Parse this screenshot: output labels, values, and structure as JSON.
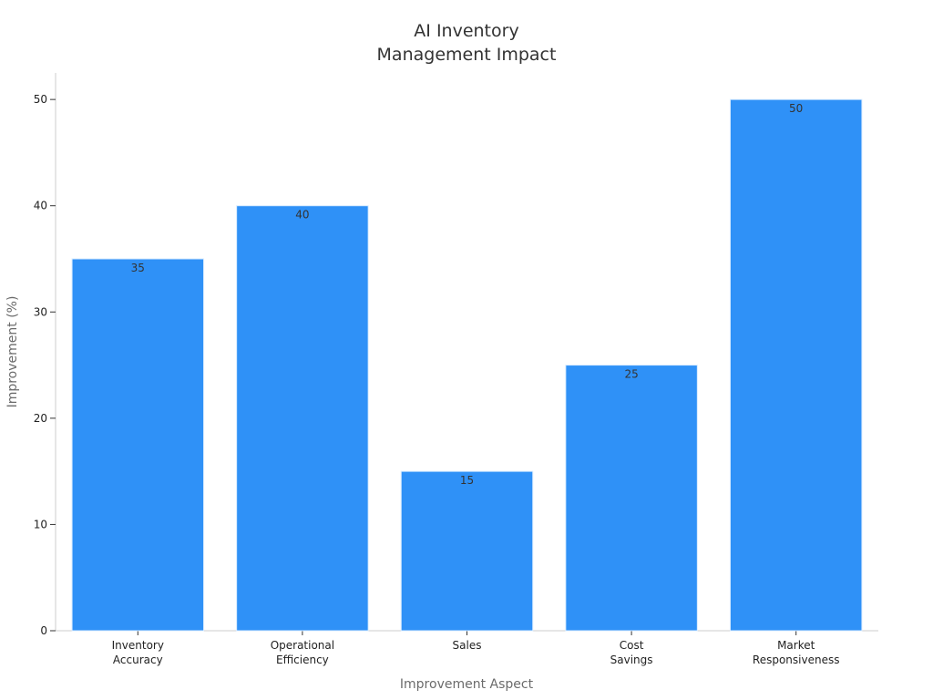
{
  "chart_data": {
    "type": "bar",
    "title": [
      "AI Inventory",
      "Management Impact"
    ],
    "xlabel": "Improvement Aspect",
    "ylabel": "Improvement (%)",
    "categories": [
      [
        "Inventory",
        "Accuracy"
      ],
      [
        "Operational",
        "Efficiency"
      ],
      [
        "Sales"
      ],
      [
        "Cost",
        "Savings"
      ],
      [
        "Market",
        "Responsiveness"
      ]
    ],
    "values": [
      35,
      40,
      15,
      25,
      50
    ],
    "ylim": [
      0,
      52.5
    ],
    "yticks": [
      0,
      10,
      20,
      30,
      40,
      50
    ],
    "bar_color": "#2f91f7",
    "bar_edge_color": "#d9ecff",
    "grid": false,
    "legend": "none"
  }
}
